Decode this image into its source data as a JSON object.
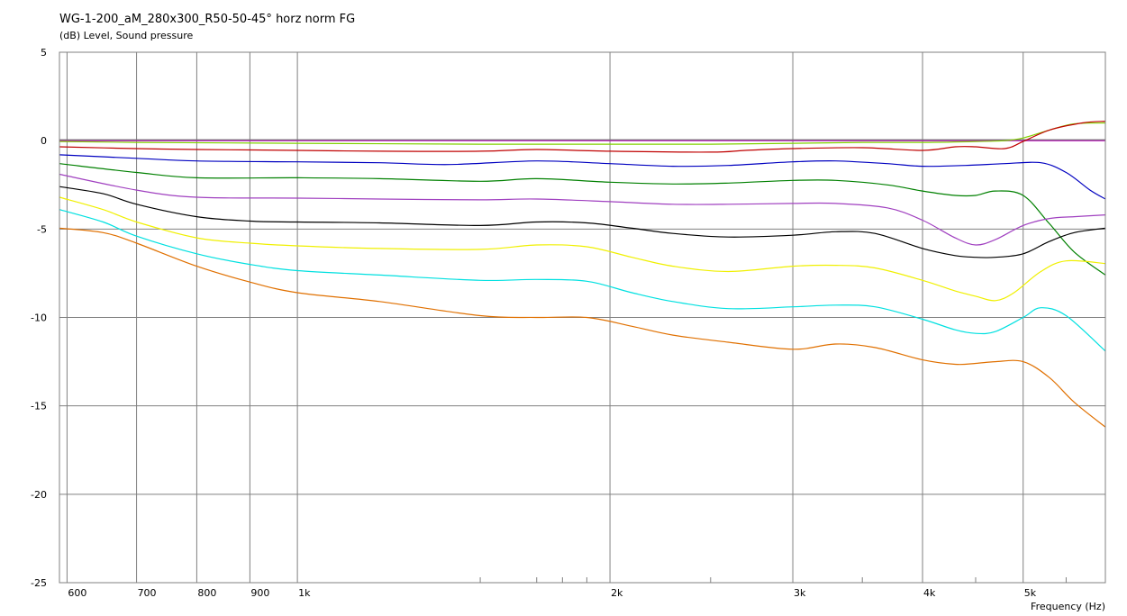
{
  "chart_data": {
    "type": "line",
    "title": "WG-1-200_aM_280x300_R50-50-45° horz norm FG",
    "ylabel": "(dB)  Level, Sound pressure",
    "xlabel": "Frequency  (Hz)",
    "x_scale": "log",
    "xlim": [
      590,
      6000
    ],
    "ylim": [
      -25,
      5
    ],
    "y_ticks": [
      5,
      0,
      -5,
      -10,
      -15,
      -20,
      -25
    ],
    "y_tick_labels": [
      "5",
      "0",
      "-5",
      "-10",
      "-15",
      "-20",
      "-25"
    ],
    "x_major_ticks": [
      600,
      700,
      800,
      900,
      1000,
      2000,
      3000,
      4000,
      5000
    ],
    "x_minor_ticks": [
      1500,
      1700,
      1800,
      1900,
      2500,
      3500,
      4500,
      5500
    ],
    "x_tick_labels": [
      {
        "x": 600,
        "label": "600"
      },
      {
        "x": 700,
        "label": "700"
      },
      {
        "x": 800,
        "label": "800"
      },
      {
        "x": 900,
        "label": "900"
      },
      {
        "x": 1000,
        "label": "1k"
      },
      {
        "x": 2000,
        "label": "2k"
      },
      {
        "x": 3000,
        "label": "3k"
      },
      {
        "x": 4000,
        "label": "4k"
      },
      {
        "x": 5000,
        "label": "5k"
      }
    ],
    "grid": true,
    "legend": "none",
    "series": [
      {
        "color": "#c000c0",
        "x": [
          590,
          1000,
          2000,
          3000,
          4000,
          5000,
          5500,
          6000
        ],
        "y": [
          0.0,
          0.0,
          0.0,
          0.0,
          0.0,
          0.0,
          0.0,
          0.0
        ]
      },
      {
        "color": "#707070",
        "x": [
          590,
          1000,
          2000,
          3000,
          4000,
          5000,
          6000
        ],
        "y": [
          0.05,
          0.05,
          0.05,
          0.05,
          0.05,
          0.05,
          0.05
        ]
      },
      {
        "color": "#80d000",
        "x": [
          590,
          700,
          1000,
          1500,
          2000,
          2500,
          3000,
          3500,
          4000,
          4500,
          4800,
          5000,
          5300,
          5600,
          6000
        ],
        "y": [
          -0.05,
          -0.1,
          -0.15,
          -0.2,
          -0.2,
          -0.2,
          -0.15,
          -0.1,
          -0.1,
          -0.05,
          0.0,
          0.15,
          0.6,
          0.95,
          1.0
        ]
      },
      {
        "color": "#c00000",
        "x": [
          590,
          700,
          800,
          1000,
          1200,
          1500,
          1700,
          2000,
          2500,
          2700,
          3000,
          3500,
          4000,
          4300,
          4500,
          4800,
          5000,
          5300,
          5700,
          6000
        ],
        "y": [
          -0.35,
          -0.45,
          -0.5,
          -0.55,
          -0.6,
          -0.6,
          -0.5,
          -0.6,
          -0.65,
          -0.55,
          -0.45,
          -0.4,
          -0.55,
          -0.35,
          -0.35,
          -0.45,
          -0.05,
          0.6,
          1.0,
          1.1
        ]
      },
      {
        "color": "#0000c0",
        "x": [
          590,
          700,
          800,
          1000,
          1200,
          1400,
          1700,
          2000,
          2300,
          2600,
          3000,
          3300,
          3700,
          4000,
          4400,
          4800,
          5200,
          5500,
          5800,
          6000
        ],
        "y": [
          -0.8,
          -1.0,
          -1.15,
          -1.2,
          -1.25,
          -1.35,
          -1.15,
          -1.3,
          -1.45,
          -1.4,
          -1.2,
          -1.15,
          -1.3,
          -1.45,
          -1.4,
          -1.3,
          -1.25,
          -1.8,
          -2.8,
          -3.3
        ]
      },
      {
        "color": "#008000",
        "x": [
          590,
          700,
          800,
          1000,
          1200,
          1500,
          1700,
          2000,
          2300,
          2600,
          3000,
          3300,
          3700,
          4000,
          4300,
          4500,
          4700,
          5000,
          5300,
          5600,
          6000
        ],
        "y": [
          -1.3,
          -1.8,
          -2.1,
          -2.1,
          -2.15,
          -2.3,
          -2.15,
          -2.35,
          -2.45,
          -2.4,
          -2.25,
          -2.25,
          -2.5,
          -2.85,
          -3.1,
          -3.1,
          -2.85,
          -3.1,
          -4.7,
          -6.3,
          -7.6
        ]
      },
      {
        "color": "#a040c0",
        "x": [
          590,
          700,
          800,
          1000,
          1200,
          1500,
          1700,
          2000,
          2300,
          2600,
          3000,
          3300,
          3700,
          4000,
          4300,
          4500,
          4700,
          5000,
          5300,
          5600,
          6000
        ],
        "y": [
          -1.9,
          -2.8,
          -3.2,
          -3.25,
          -3.3,
          -3.35,
          -3.3,
          -3.45,
          -3.6,
          -3.6,
          -3.55,
          -3.55,
          -3.8,
          -4.5,
          -5.5,
          -5.9,
          -5.6,
          -4.8,
          -4.4,
          -4.3,
          -4.2
        ]
      },
      {
        "color": "#000000",
        "x": [
          590,
          650,
          700,
          800,
          900,
          1000,
          1200,
          1500,
          1700,
          1900,
          2100,
          2300,
          2600,
          3000,
          3300,
          3600,
          4000,
          4300,
          4500,
          4700,
          5000,
          5300,
          5600,
          6000
        ],
        "y": [
          -2.6,
          -3.0,
          -3.6,
          -4.3,
          -4.55,
          -4.6,
          -4.65,
          -4.8,
          -4.6,
          -4.65,
          -4.95,
          -5.25,
          -5.45,
          -5.35,
          -5.15,
          -5.25,
          -6.1,
          -6.5,
          -6.6,
          -6.6,
          -6.4,
          -5.7,
          -5.2,
          -4.95
        ]
      },
      {
        "color": "#f0f000",
        "x": [
          590,
          650,
          700,
          800,
          900,
          1000,
          1200,
          1500,
          1700,
          1900,
          2100,
          2300,
          2600,
          3000,
          3300,
          3600,
          4000,
          4300,
          4500,
          4700,
          4900,
          5200,
          5500,
          6000
        ],
        "y": [
          -3.2,
          -3.9,
          -4.6,
          -5.5,
          -5.8,
          -5.95,
          -6.1,
          -6.15,
          -5.9,
          -6.0,
          -6.6,
          -7.1,
          -7.4,
          -7.1,
          -7.05,
          -7.2,
          -7.9,
          -8.5,
          -8.8,
          -9.05,
          -8.6,
          -7.4,
          -6.8,
          -6.95
        ]
      },
      {
        "color": "#00e0e0",
        "x": [
          590,
          650,
          700,
          800,
          900,
          1000,
          1200,
          1500,
          1700,
          1900,
          2100,
          2300,
          2600,
          3000,
          3300,
          3600,
          4000,
          4300,
          4500,
          4700,
          5000,
          5200,
          5500,
          6000
        ],
        "y": [
          -3.9,
          -4.6,
          -5.4,
          -6.4,
          -7.0,
          -7.35,
          -7.6,
          -7.9,
          -7.85,
          -7.95,
          -8.6,
          -9.1,
          -9.5,
          -9.4,
          -9.3,
          -9.4,
          -10.1,
          -10.7,
          -10.9,
          -10.8,
          -10.0,
          -9.45,
          -9.9,
          -11.9
        ]
      },
      {
        "color": "#e07000",
        "x": [
          590,
          650,
          700,
          800,
          900,
          1000,
          1200,
          1500,
          1700,
          1900,
          2100,
          2300,
          2600,
          3000,
          3300,
          3600,
          4000,
          4300,
          4500,
          4700,
          5000,
          5300,
          5600,
          6000
        ],
        "y": [
          -4.95,
          -5.2,
          -5.8,
          -7.1,
          -8.0,
          -8.6,
          -9.1,
          -9.9,
          -10.0,
          -10.0,
          -10.5,
          -11.0,
          -11.4,
          -11.8,
          -11.5,
          -11.7,
          -12.4,
          -12.65,
          -12.6,
          -12.5,
          -12.5,
          -13.4,
          -14.8,
          -16.2
        ]
      }
    ]
  }
}
